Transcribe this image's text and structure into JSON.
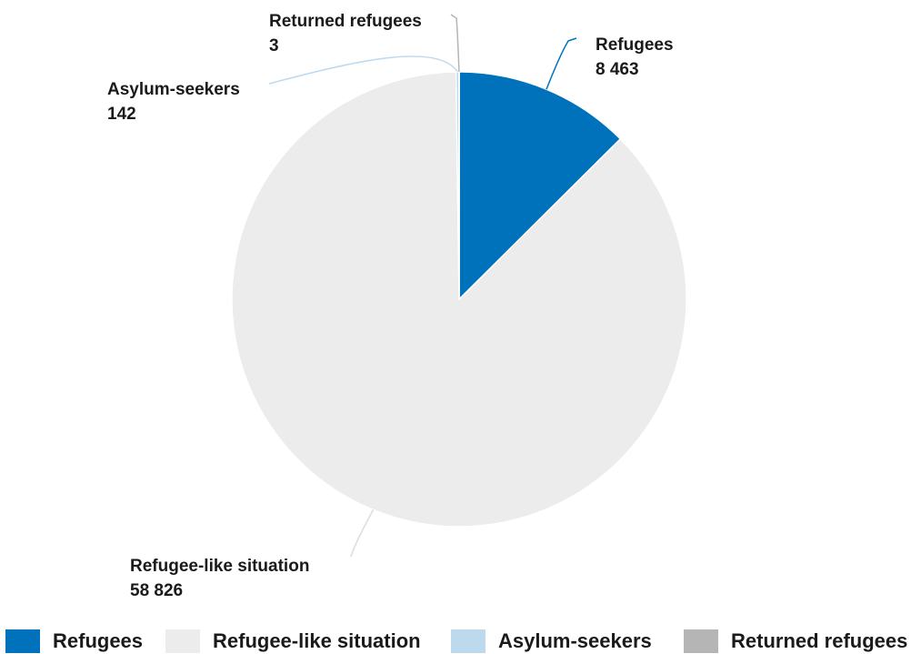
{
  "chart_data": {
    "type": "pie",
    "title": "",
    "slices": [
      {
        "name": "Refugees",
        "value": 8463,
        "value_label": "8 463",
        "color": "#0072bc"
      },
      {
        "name": "Refugee-like situation",
        "value": 58826,
        "value_label": "58 826",
        "color": "#ececec"
      },
      {
        "name": "Asylum-seekers",
        "value": 142,
        "value_label": "142",
        "color": "#bcd9ee"
      },
      {
        "name": "Returned refugees",
        "value": 3,
        "value_label": "3",
        "color": "#b5b5b5"
      }
    ],
    "start_angle": "12 o'clock",
    "direction": "clockwise",
    "legend": {
      "position": "bottom"
    }
  }
}
